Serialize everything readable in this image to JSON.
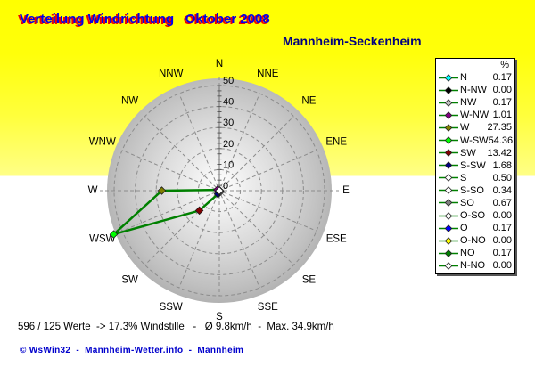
{
  "header": {
    "title": "Verteilung Windrichtung   Oktober 2008",
    "station": "Mannheim-Seckenheim"
  },
  "legend": {
    "header": "%"
  },
  "chart_data": {
    "type": "radar",
    "title": "Verteilung Windrichtung Oktober 2008",
    "units": "%",
    "line_color": "#008000",
    "grid_color": "#8c8c8c",
    "radial_axis": {
      "min": 0,
      "max": 50,
      "major_tick": 10,
      "labels": [
        "0",
        "10",
        "20",
        "30",
        "40",
        "50"
      ]
    },
    "directions": [
      {
        "legend": "N",
        "compass": "N",
        "deg": 0,
        "value": 0.17,
        "color": "#00FFFF"
      },
      {
        "legend": "N-NW",
        "compass": "NNW",
        "deg": 337.5,
        "value": 0,
        "color": "#000000"
      },
      {
        "legend": "NW",
        "compass": "NW",
        "deg": 315,
        "value": 0.17,
        "color": "#C0C0C0"
      },
      {
        "legend": "W-NW",
        "compass": "WNW",
        "deg": 292.5,
        "value": 1.01,
        "color": "#800080"
      },
      {
        "legend": "W",
        "compass": "W",
        "deg": 270,
        "value": 27.35,
        "color": "#808000"
      },
      {
        "legend": "W-SW",
        "compass": "WSW",
        "deg": 247.5,
        "value": 54.36,
        "color": "#00FF00"
      },
      {
        "legend": "SW",
        "compass": "SW",
        "deg": 225,
        "value": 13.42,
        "color": "#800000"
      },
      {
        "legend": "S-SW",
        "compass": "SSW",
        "deg": 202.5,
        "value": 1.68,
        "color": "#000080"
      },
      {
        "legend": "S",
        "compass": "S",
        "deg": 180,
        "value": 0.5,
        "color": "#FFFFFF"
      },
      {
        "legend": "S-SO",
        "compass": "SSE",
        "deg": 157.5,
        "value": 0.34,
        "color": "#FFFFFF"
      },
      {
        "legend": "SO",
        "compass": "SE",
        "deg": 135,
        "value": 0.67,
        "color": "#808080"
      },
      {
        "legend": "O-SO",
        "compass": "ESE",
        "deg": 112.5,
        "value": 0,
        "color": "#FFFFFF"
      },
      {
        "legend": "O",
        "compass": "E",
        "deg": 90,
        "value": 0.17,
        "color": "#0000FF"
      },
      {
        "legend": "O-NO",
        "compass": "ENE",
        "deg": 67.5,
        "value": 0,
        "color": "#FFFF00"
      },
      {
        "legend": "NO",
        "compass": "NE",
        "deg": 45,
        "value": 0.17,
        "color": "#008000"
      },
      {
        "legend": "N-NO",
        "compass": "NNE",
        "deg": 22.5,
        "value": 0,
        "color": "#FFFFFF"
      }
    ]
  },
  "footer": {
    "status_line": "596 / 125 Werte  -> 17.3% Windstille   -   Ø 9.8km/h  -  Max. 34.9km/h",
    "copyright": "© WsWin32  -  Mannheim-Wetter.info  -  Mannheim"
  },
  "colors": {
    "background_top": "#FFFF00",
    "background_bottom": "#FFFFFF",
    "title_text": "#0202E8",
    "title_shadow": "#FF0000",
    "station_text": "#000080",
    "copyright_text": "#0000CC"
  }
}
